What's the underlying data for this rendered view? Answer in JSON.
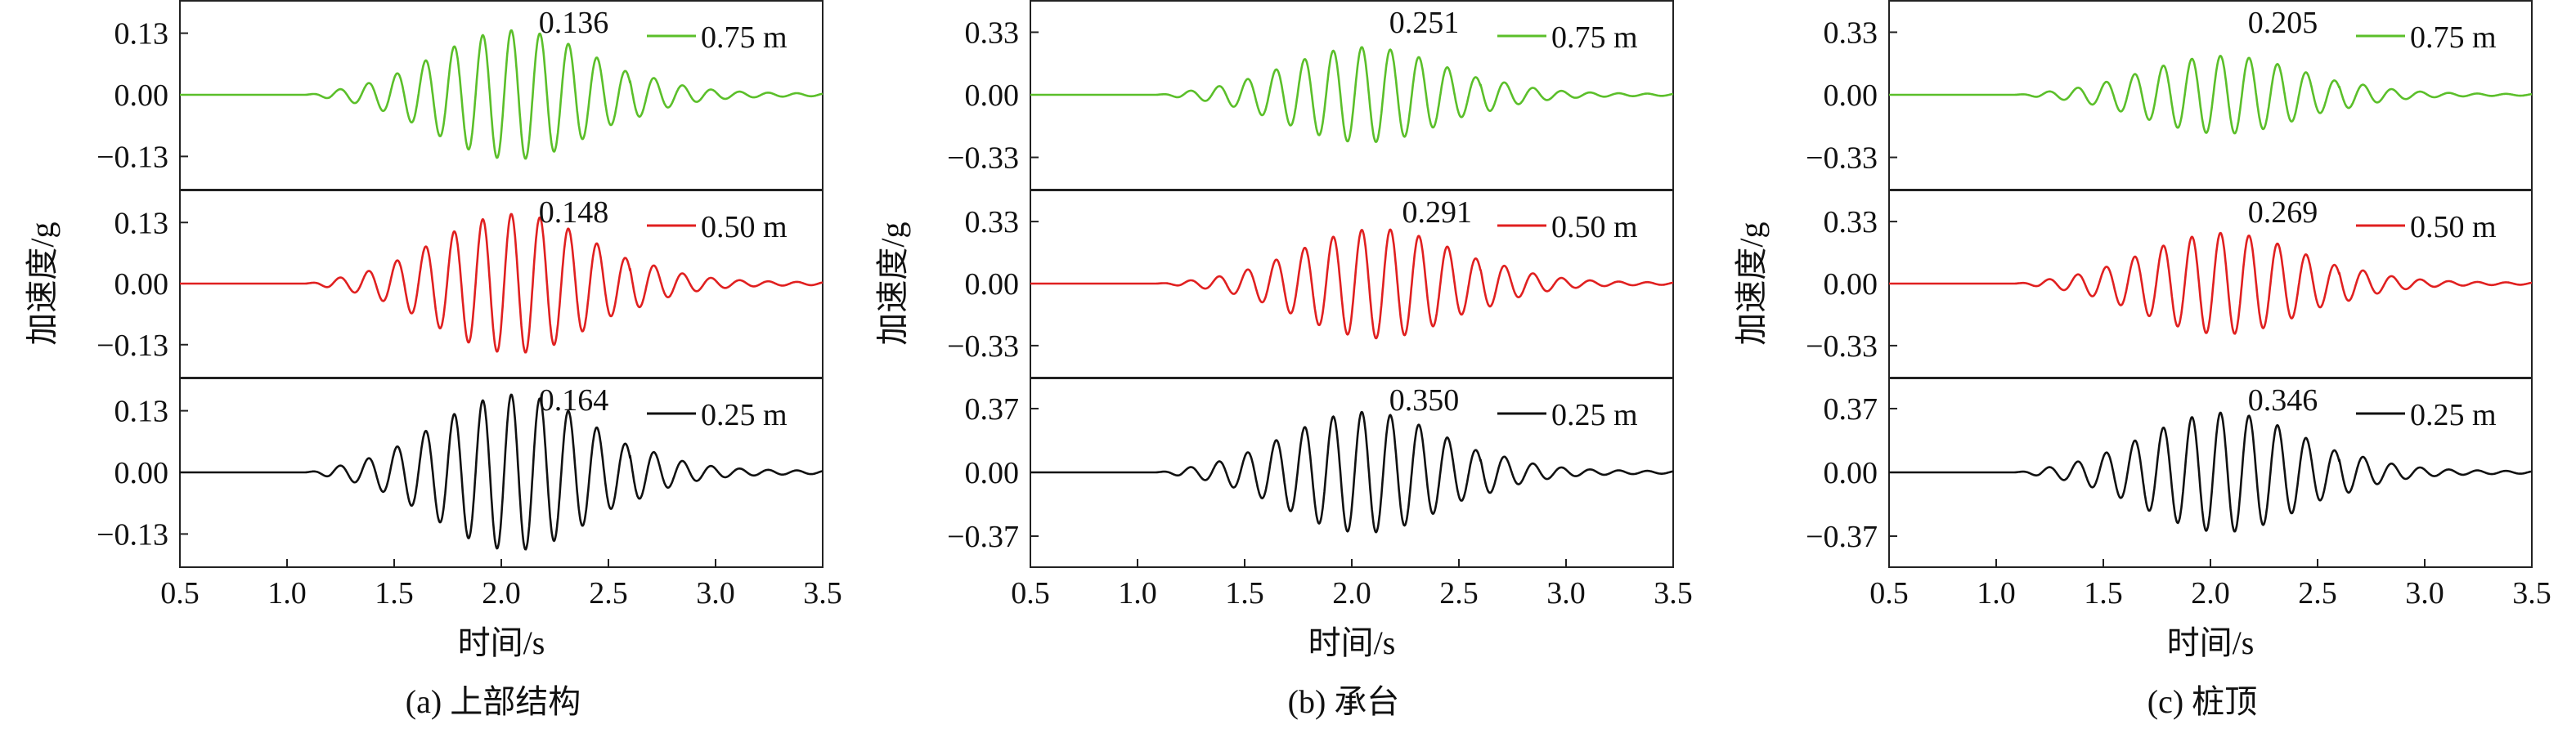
{
  "colors": {
    "0.75 m": "#5bbf2a",
    "0.50 m": "#e02020",
    "0.25 m": "#111111"
  },
  "chart_data": [
    {
      "type": "line",
      "caption": "(a) 上部结构",
      "xlabel": "时间/s",
      "ylabel": "加速度/g",
      "xlim": [
        0.5,
        3.5
      ],
      "xticks": [
        "0.5",
        "1.0",
        "1.5",
        "2.0",
        "2.5",
        "3.0",
        "3.5"
      ],
      "series": [
        {
          "name": "0.75 m",
          "peak_label": "0.136",
          "peak": 0.136,
          "peak_time": 2.06,
          "ylim": [
            -0.2,
            0.2
          ],
          "yticks": [
            0.13,
            0.0,
            -0.13
          ],
          "ytick_labels": [
            "0.13",
            "0.00",
            "−0.13"
          ]
        },
        {
          "name": "0.50 m",
          "peak_label": "0.148",
          "peak": 0.148,
          "peak_time": 2.06,
          "ylim": [
            -0.2,
            0.2
          ],
          "yticks": [
            0.13,
            0.0,
            -0.13
          ],
          "ytick_labels": [
            "0.13",
            "0.00",
            "−0.13"
          ]
        },
        {
          "name": "0.25 m",
          "peak_label": "0.164",
          "peak": 0.164,
          "peak_time": 2.06,
          "ylim": [
            -0.2,
            0.2
          ],
          "yticks": [
            0.13,
            0.0,
            -0.13
          ],
          "ytick_labels": [
            "0.13",
            "0.00",
            "−0.13"
          ]
        }
      ]
    },
    {
      "type": "line",
      "caption": "(b) 承台",
      "xlabel": "时间/s",
      "ylabel": "加速度/g",
      "xlim": [
        0.5,
        3.5
      ],
      "xticks": [
        "0.5",
        "1.0",
        "1.5",
        "2.0",
        "2.5",
        "3.0",
        "3.5"
      ],
      "series": [
        {
          "name": "0.75 m",
          "peak_label": "0.251",
          "peak": 0.251,
          "peak_time": 2.06,
          "ylim": [
            -0.5,
            0.5
          ],
          "yticks": [
            0.33,
            0.0,
            -0.33
          ],
          "ytick_labels": [
            "0.33",
            "0.00",
            "−0.33"
          ]
        },
        {
          "name": "0.50 m",
          "peak_label": "0.291",
          "peak": 0.291,
          "peak_time": 2.12,
          "ylim": [
            -0.5,
            0.5
          ],
          "yticks": [
            0.33,
            0.0,
            -0.33
          ],
          "ytick_labels": [
            "0.33",
            "0.00",
            "−0.33"
          ]
        },
        {
          "name": "0.25 m",
          "peak_label": "0.350",
          "peak": 0.35,
          "peak_time": 2.06,
          "ylim": [
            -0.55,
            0.55
          ],
          "yticks": [
            0.37,
            0.0,
            -0.37
          ],
          "ytick_labels": [
            "0.37",
            "0.00",
            "−0.37"
          ]
        }
      ]
    },
    {
      "type": "line",
      "caption": "(c) 桩顶",
      "xlabel": "时间/s",
      "ylabel": "加速度/g",
      "xlim": [
        0.5,
        3.5
      ],
      "xticks": [
        "0.5",
        "1.0",
        "1.5",
        "2.0",
        "2.5",
        "3.0",
        "3.5"
      ],
      "series": [
        {
          "name": "0.75 m",
          "peak_label": "0.205",
          "peak": 0.205,
          "peak_time": 2.06,
          "ylim": [
            -0.5,
            0.5
          ],
          "yticks": [
            0.33,
            0.0,
            -0.33
          ],
          "ytick_labels": [
            "0.33",
            "0.00",
            "−0.33"
          ]
        },
        {
          "name": "0.50 m",
          "peak_label": "0.269",
          "peak": 0.269,
          "peak_time": 2.06,
          "ylim": [
            -0.5,
            0.5
          ],
          "yticks": [
            0.33,
            0.0,
            -0.33
          ],
          "ytick_labels": [
            "0.33",
            "0.00",
            "−0.33"
          ]
        },
        {
          "name": "0.25 m",
          "peak_label": "0.346",
          "peak": 0.346,
          "peak_time": 2.06,
          "ylim": [
            -0.55,
            0.55
          ],
          "yticks": [
            0.37,
            0.0,
            -0.37
          ],
          "ytick_labels": [
            "0.37",
            "0.00",
            "−0.37"
          ]
        }
      ]
    }
  ]
}
